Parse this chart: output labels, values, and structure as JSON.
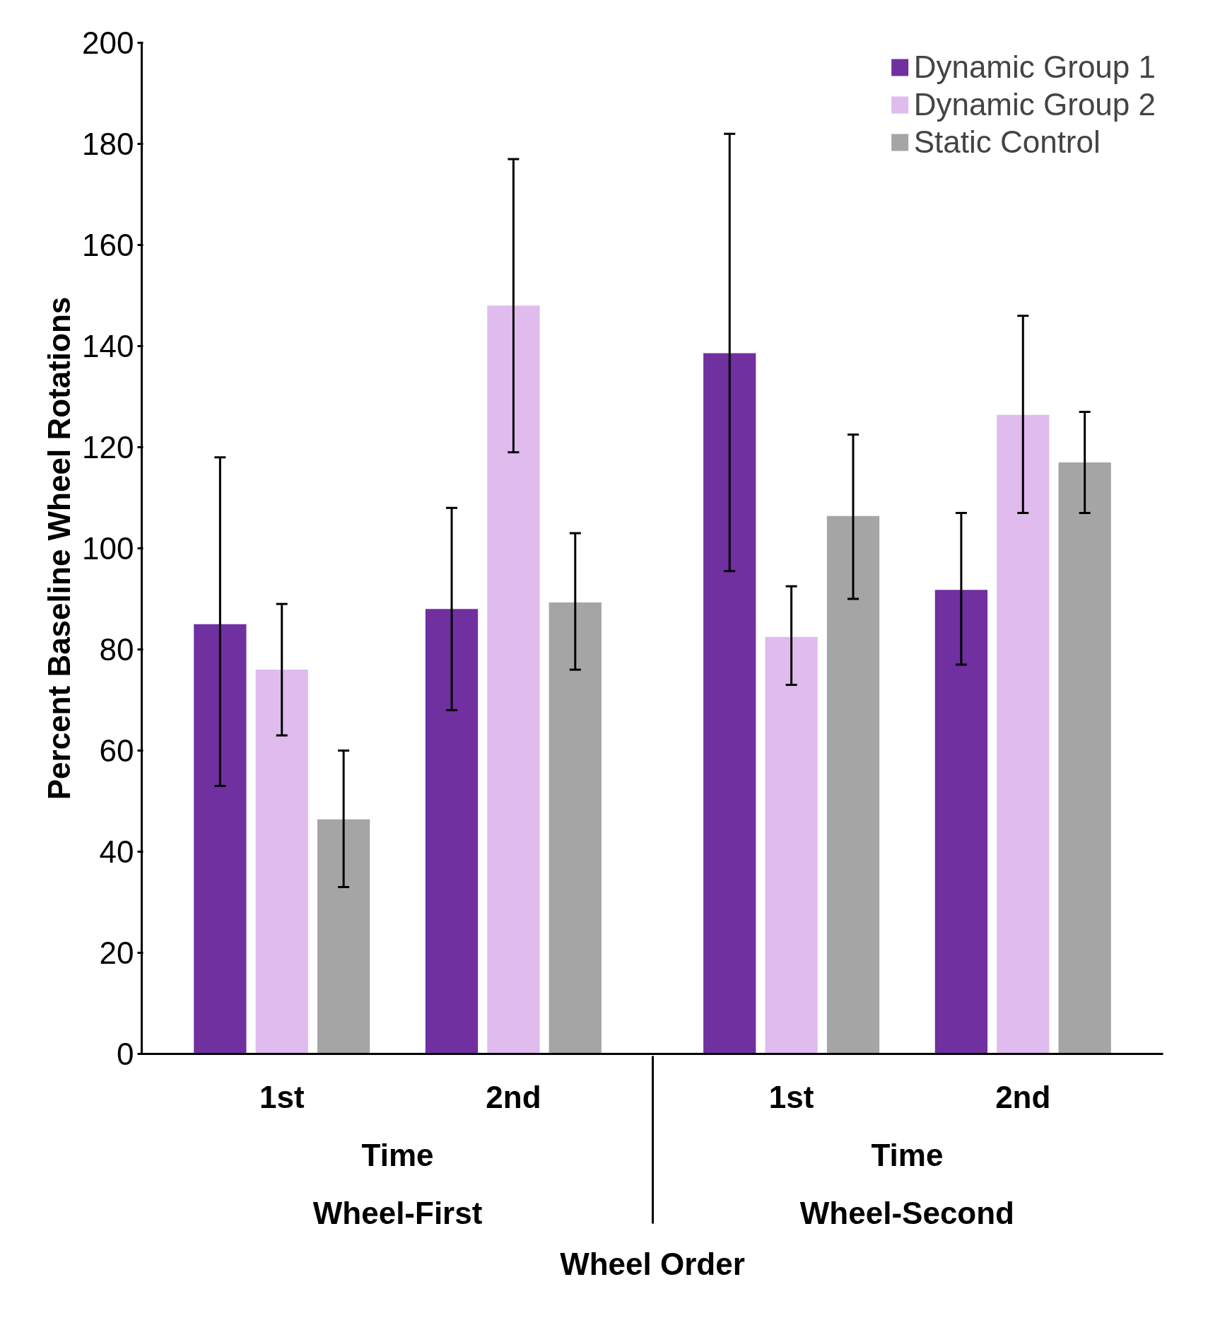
{
  "chart_data": {
    "type": "bar",
    "ylabel": "Percent Baseline Wheel Rotations",
    "xlabel": "Wheel Order",
    "categories": [
      "1st",
      "2nd",
      "1st",
      "2nd"
    ],
    "series": [
      {
        "name": "Dynamic Group 1",
        "color": "#7030a0",
        "values": [
          85,
          88,
          138.6,
          91.8
        ],
        "errors": [
          [
            53,
            118
          ],
          [
            68,
            108
          ],
          [
            95.5,
            182
          ],
          [
            77,
            107
          ]
        ]
      },
      {
        "name": "Dynamic Group 2",
        "color": "#e0bbee",
        "values": [
          76,
          148,
          82.5,
          126.4
        ],
        "errors": [
          [
            63,
            89
          ],
          [
            119,
            177
          ],
          [
            73,
            92.5
          ],
          [
            107,
            146
          ]
        ]
      },
      {
        "name": "Static Control",
        "color": "#a5a5a5",
        "values": [
          46.4,
          89.3,
          106.4,
          117
        ],
        "errors": [
          [
            33,
            60
          ],
          [
            76,
            103
          ],
          [
            90,
            122.5
          ],
          [
            107,
            127
          ]
        ]
      }
    ],
    "annotations": [
      "Time",
      "Time",
      "Wheel-First",
      "Wheel-Second"
    ],
    "ylim": [
      0,
      200
    ],
    "yticks": [
      0,
      20,
      40,
      60,
      80,
      100,
      120,
      140,
      160,
      180,
      200
    ],
    "grid": false,
    "legend": "top right"
  }
}
